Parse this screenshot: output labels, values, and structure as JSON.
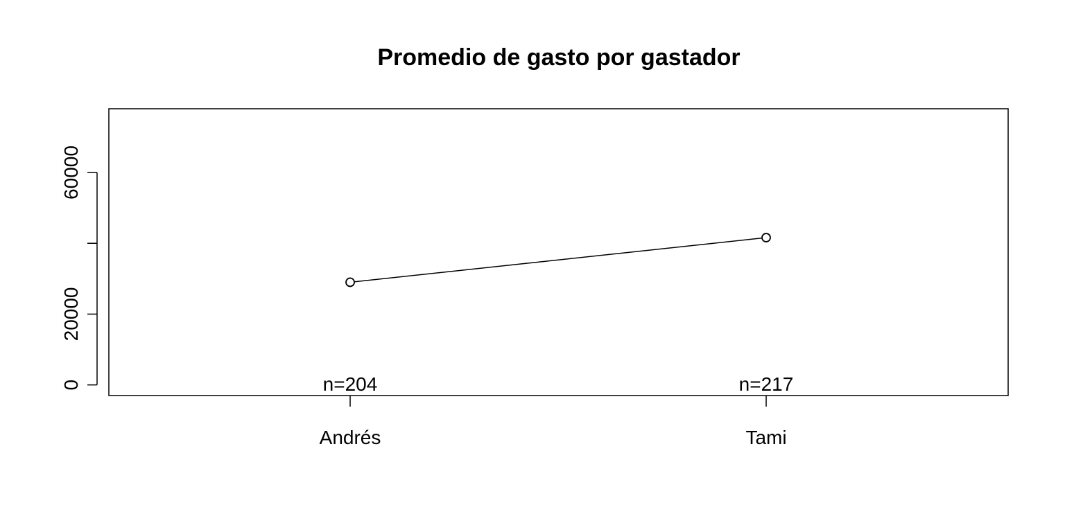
{
  "chart_data": {
    "type": "line",
    "title": "Promedio de gasto por gastador",
    "xlabel": "",
    "ylabel": "",
    "categories": [
      "Andrés",
      "Tami"
    ],
    "series": [
      {
        "values": [
          29000,
          41600
        ]
      }
    ],
    "count_labels": [
      "n=204",
      "n=217"
    ],
    "y_ticks": [
      0,
      20000,
      40000,
      60000
    ],
    "y_tick_labels": [
      "0",
      "20000",
      "",
      "60000"
    ],
    "ylim": [
      -3000,
      78000
    ],
    "grid": false,
    "legend": "none",
    "colors": {
      "line": "#000000",
      "axis": "#000000"
    }
  }
}
